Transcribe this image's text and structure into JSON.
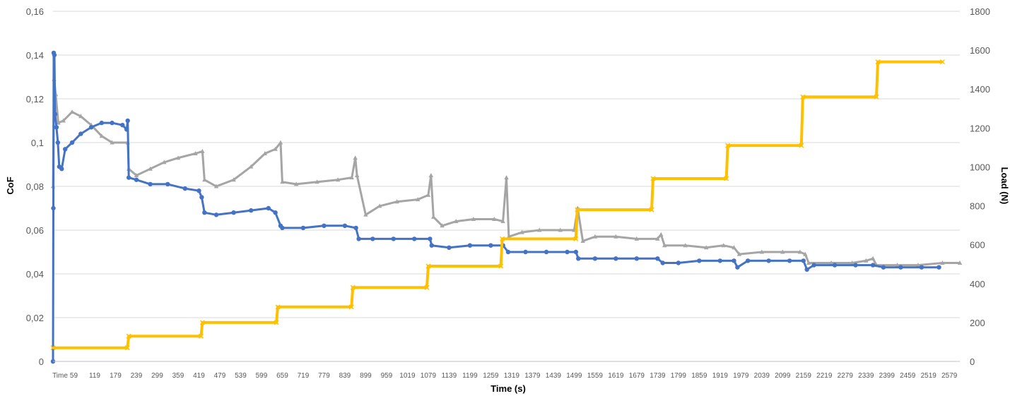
{
  "chart_data": {
    "type": "line",
    "xlabel": "Time (s)",
    "ylabel_left": "CoF",
    "ylabel_right": "Load (N)",
    "x_tick_labels": [
      "Time",
      "59",
      "119",
      "179",
      "239",
      "299",
      "359",
      "419",
      "479",
      "539",
      "599",
      "659",
      "719",
      "779",
      "839",
      "899",
      "959",
      "1019",
      "1079",
      "1139",
      "1199",
      "1259",
      "1319",
      "1379",
      "1439",
      "1499",
      "1559",
      "1619",
      "1679",
      "1739",
      "1799",
      "1859",
      "1919",
      "1979",
      "2039",
      "2099",
      "2159",
      "2219",
      "2279",
      "2339",
      "2399",
      "2459",
      "2519",
      "2579"
    ],
    "y_left_ticks": [
      "0",
      "0,02",
      "0,04",
      "0,06",
      "0,08",
      "0,1",
      "0,12",
      "0,14",
      "0,16"
    ],
    "y_right_ticks": [
      "0",
      "200",
      "400",
      "600",
      "800",
      "1000",
      "1200",
      "1400",
      "1600",
      "1800"
    ],
    "ylim_left": [
      0,
      0.16
    ],
    "ylim_right": [
      0,
      1800
    ],
    "xlim": [
      0,
      2610
    ],
    "grid": "horizontal",
    "legend": "none",
    "series": [
      {
        "color": "#A5A5A5",
        "axis": "left",
        "marker": "triangle",
        "points": [
          [
            0,
            0.08
          ],
          [
            3,
            0.129
          ],
          [
            8,
            0.122
          ],
          [
            15,
            0.109
          ],
          [
            30,
            0.11
          ],
          [
            55,
            0.114
          ],
          [
            80,
            0.112
          ],
          [
            110,
            0.108
          ],
          [
            140,
            0.103
          ],
          [
            170,
            0.1
          ],
          [
            215,
            0.1
          ],
          [
            218,
            0.088
          ],
          [
            240,
            0.085
          ],
          [
            280,
            0.088
          ],
          [
            320,
            0.091
          ],
          [
            360,
            0.093
          ],
          [
            410,
            0.095
          ],
          [
            430,
            0.096
          ],
          [
            436,
            0.083
          ],
          [
            470,
            0.08
          ],
          [
            520,
            0.083
          ],
          [
            570,
            0.089
          ],
          [
            610,
            0.095
          ],
          [
            640,
            0.097
          ],
          [
            655,
            0.1
          ],
          [
            660,
            0.082
          ],
          [
            700,
            0.081
          ],
          [
            760,
            0.082
          ],
          [
            820,
            0.083
          ],
          [
            860,
            0.084
          ],
          [
            870,
            0.093
          ],
          [
            875,
            0.085
          ],
          [
            900,
            0.067
          ],
          [
            940,
            0.071
          ],
          [
            990,
            0.073
          ],
          [
            1050,
            0.074
          ],
          [
            1080,
            0.076
          ],
          [
            1088,
            0.085
          ],
          [
            1095,
            0.066
          ],
          [
            1120,
            0.062
          ],
          [
            1160,
            0.064
          ],
          [
            1210,
            0.065
          ],
          [
            1270,
            0.065
          ],
          [
            1295,
            0.064
          ],
          [
            1305,
            0.084
          ],
          [
            1312,
            0.057
          ],
          [
            1350,
            0.059
          ],
          [
            1400,
            0.06
          ],
          [
            1460,
            0.06
          ],
          [
            1500,
            0.06
          ],
          [
            1510,
            0.07
          ],
          [
            1525,
            0.055
          ],
          [
            1560,
            0.057
          ],
          [
            1620,
            0.057
          ],
          [
            1680,
            0.056
          ],
          [
            1740,
            0.056
          ],
          [
            1750,
            0.058
          ],
          [
            1760,
            0.053
          ],
          [
            1820,
            0.053
          ],
          [
            1880,
            0.052
          ],
          [
            1930,
            0.053
          ],
          [
            1960,
            0.052
          ],
          [
            1975,
            0.049
          ],
          [
            2040,
            0.05
          ],
          [
            2100,
            0.05
          ],
          [
            2150,
            0.05
          ],
          [
            2165,
            0.049
          ],
          [
            2175,
            0.045
          ],
          [
            2240,
            0.045
          ],
          [
            2300,
            0.045
          ],
          [
            2340,
            0.046
          ],
          [
            2360,
            0.047
          ],
          [
            2370,
            0.044
          ],
          [
            2430,
            0.044
          ],
          [
            2490,
            0.044
          ],
          [
            2560,
            0.045
          ],
          [
            2610,
            0.045
          ]
        ]
      },
      {
        "color": "#4472C4",
        "axis": "left",
        "marker": "circle",
        "points": [
          [
            0,
            0.0
          ],
          [
            1,
            0.07
          ],
          [
            2,
            0.141
          ],
          [
            4,
            0.14
          ],
          [
            6,
            0.113
          ],
          [
            10,
            0.107
          ],
          [
            14,
            0.1
          ],
          [
            18,
            0.089
          ],
          [
            25,
            0.088
          ],
          [
            35,
            0.097
          ],
          [
            55,
            0.1
          ],
          [
            80,
            0.104
          ],
          [
            110,
            0.107
          ],
          [
            140,
            0.109
          ],
          [
            170,
            0.109
          ],
          [
            200,
            0.108
          ],
          [
            212,
            0.106
          ],
          [
            215,
            0.11
          ],
          [
            218,
            0.084
          ],
          [
            240,
            0.083
          ],
          [
            280,
            0.081
          ],
          [
            330,
            0.081
          ],
          [
            380,
            0.079
          ],
          [
            420,
            0.078
          ],
          [
            428,
            0.075
          ],
          [
            436,
            0.068
          ],
          [
            470,
            0.067
          ],
          [
            520,
            0.068
          ],
          [
            570,
            0.069
          ],
          [
            620,
            0.07
          ],
          [
            640,
            0.068
          ],
          [
            655,
            0.062
          ],
          [
            660,
            0.061
          ],
          [
            720,
            0.061
          ],
          [
            780,
            0.062
          ],
          [
            840,
            0.062
          ],
          [
            872,
            0.061
          ],
          [
            880,
            0.056
          ],
          [
            920,
            0.056
          ],
          [
            980,
            0.056
          ],
          [
            1040,
            0.056
          ],
          [
            1085,
            0.056
          ],
          [
            1090,
            0.053
          ],
          [
            1140,
            0.052
          ],
          [
            1200,
            0.053
          ],
          [
            1260,
            0.053
          ],
          [
            1295,
            0.053
          ],
          [
            1310,
            0.05
          ],
          [
            1360,
            0.05
          ],
          [
            1420,
            0.05
          ],
          [
            1480,
            0.05
          ],
          [
            1505,
            0.05
          ],
          [
            1512,
            0.047
          ],
          [
            1560,
            0.047
          ],
          [
            1620,
            0.047
          ],
          [
            1680,
            0.047
          ],
          [
            1740,
            0.047
          ],
          [
            1755,
            0.045
          ],
          [
            1800,
            0.045
          ],
          [
            1860,
            0.046
          ],
          [
            1920,
            0.046
          ],
          [
            1960,
            0.046
          ],
          [
            1970,
            0.043
          ],
          [
            2000,
            0.046
          ],
          [
            2060,
            0.046
          ],
          [
            2120,
            0.046
          ],
          [
            2160,
            0.046
          ],
          [
            2170,
            0.042
          ],
          [
            2190,
            0.044
          ],
          [
            2250,
            0.044
          ],
          [
            2310,
            0.044
          ],
          [
            2360,
            0.044
          ],
          [
            2390,
            0.043
          ],
          [
            2440,
            0.043
          ],
          [
            2500,
            0.043
          ],
          [
            2550,
            0.043
          ]
        ]
      },
      {
        "color": "#FFC000",
        "axis": "right",
        "marker": "cross",
        "points": [
          [
            0,
            70
          ],
          [
            214,
            70
          ],
          [
            218,
            130
          ],
          [
            426,
            130
          ],
          [
            430,
            200
          ],
          [
            643,
            200
          ],
          [
            647,
            280
          ],
          [
            859,
            280
          ],
          [
            863,
            380
          ],
          [
            1076,
            380
          ],
          [
            1080,
            490
          ],
          [
            1289,
            490
          ],
          [
            1293,
            630
          ],
          [
            1505,
            630
          ],
          [
            1509,
            780
          ],
          [
            1723,
            780
          ],
          [
            1727,
            940
          ],
          [
            1938,
            940
          ],
          [
            1942,
            1110
          ],
          [
            2154,
            1110
          ],
          [
            2158,
            1360
          ],
          [
            2370,
            1360
          ],
          [
            2374,
            1540
          ],
          [
            2560,
            1540
          ]
        ]
      }
    ]
  }
}
